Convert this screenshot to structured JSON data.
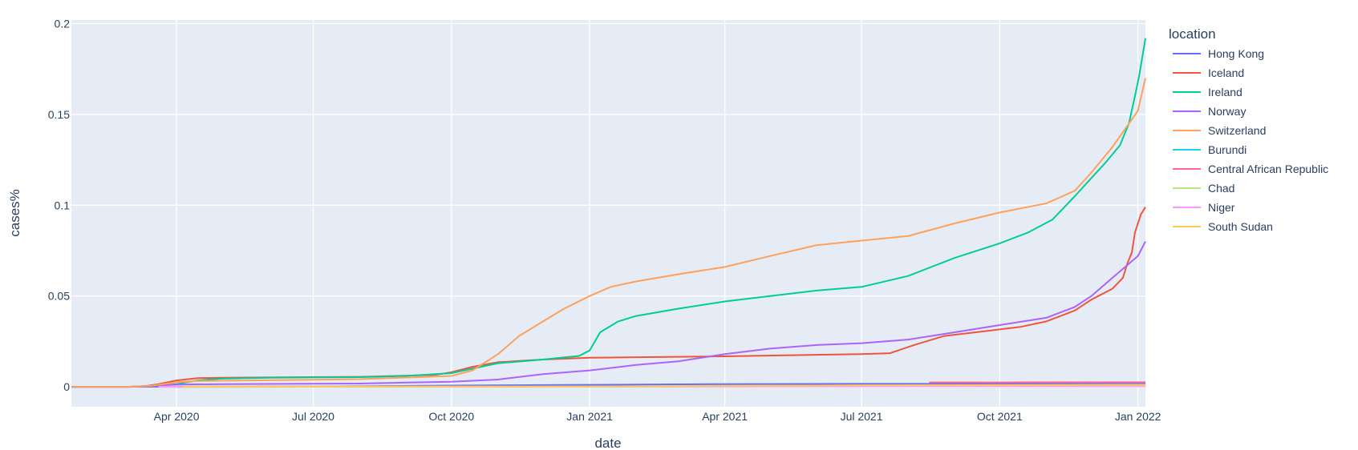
{
  "chart_data": {
    "type": "line",
    "xlabel": "date",
    "ylabel": "cases%",
    "legend_title": "location",
    "legend_position": "right",
    "grid": true,
    "x_range": [
      "2020-01-22",
      "2022-01-06"
    ],
    "y_range": [
      -0.011,
      0.202
    ],
    "x_ticks": [
      {
        "date": "2020-04-01",
        "label": "Apr 2020"
      },
      {
        "date": "2020-07-01",
        "label": "Jul 2020"
      },
      {
        "date": "2020-10-01",
        "label": "Oct 2020"
      },
      {
        "date": "2021-01-01",
        "label": "Jan 2021"
      },
      {
        "date": "2021-04-01",
        "label": "Apr 2021"
      },
      {
        "date": "2021-07-01",
        "label": "Jul 2021"
      },
      {
        "date": "2021-10-01",
        "label": "Oct 2021"
      },
      {
        "date": "2022-01-01",
        "label": "Jan 2022"
      }
    ],
    "y_ticks": [
      {
        "value": 0,
        "label": "0"
      },
      {
        "value": 0.05,
        "label": "0.05"
      },
      {
        "value": 0.1,
        "label": "0.1"
      },
      {
        "value": 0.15,
        "label": "0.15"
      },
      {
        "value": 0.2,
        "label": "0.2"
      }
    ],
    "series": [
      {
        "name": "Hong Kong",
        "color": "#636efa",
        "points": [
          [
            "2020-01-22",
            0
          ],
          [
            "2020-03-01",
            1e-05
          ],
          [
            "2020-04-01",
            9e-05
          ],
          [
            "2020-07-01",
            0.00017
          ],
          [
            "2020-10-01",
            0.0007
          ],
          [
            "2021-01-01",
            0.0011
          ],
          [
            "2021-04-01",
            0.0015
          ],
          [
            "2021-07-01",
            0.0016
          ],
          [
            "2021-10-01",
            0.0016
          ],
          [
            "2022-01-06",
            0.0017
          ]
        ]
      },
      {
        "name": "Iceland",
        "color": "#EF553B",
        "points": [
          [
            "2020-01-22",
            0
          ],
          [
            "2020-02-28",
            0
          ],
          [
            "2020-03-10",
            0.0002
          ],
          [
            "2020-03-20",
            0.0015
          ],
          [
            "2020-04-01",
            0.0035
          ],
          [
            "2020-04-15",
            0.0048
          ],
          [
            "2020-05-01",
            0.005
          ],
          [
            "2020-08-01",
            0.0055
          ],
          [
            "2020-09-20",
            0.0065
          ],
          [
            "2020-10-01",
            0.008
          ],
          [
            "2020-10-15",
            0.011
          ],
          [
            "2020-11-01",
            0.0135
          ],
          [
            "2020-12-01",
            0.015
          ],
          [
            "2021-01-01",
            0.016
          ],
          [
            "2021-04-01",
            0.0168
          ],
          [
            "2021-07-01",
            0.018
          ],
          [
            "2021-07-20",
            0.0185
          ],
          [
            "2021-08-05",
            0.023
          ],
          [
            "2021-08-25",
            0.028
          ],
          [
            "2021-09-15",
            0.03
          ],
          [
            "2021-10-15",
            0.033
          ],
          [
            "2021-11-01",
            0.036
          ],
          [
            "2021-11-20",
            0.042
          ],
          [
            "2021-12-01",
            0.048
          ],
          [
            "2021-12-15",
            0.054
          ],
          [
            "2021-12-22",
            0.06
          ],
          [
            "2021-12-25",
            0.068
          ],
          [
            "2021-12-28",
            0.074
          ],
          [
            "2021-12-30",
            0.085
          ],
          [
            "2022-01-03",
            0.095
          ],
          [
            "2022-01-06",
            0.099
          ]
        ]
      },
      {
        "name": "Ireland",
        "color": "#00cc96",
        "points": [
          [
            "2020-01-22",
            0
          ],
          [
            "2020-02-28",
            0
          ],
          [
            "2020-03-15",
            0.0005
          ],
          [
            "2020-04-01",
            0.0015
          ],
          [
            "2020-04-15",
            0.0035
          ],
          [
            "2020-05-01",
            0.0045
          ],
          [
            "2020-06-01",
            0.005
          ],
          [
            "2020-08-01",
            0.0053
          ],
          [
            "2020-09-01",
            0.006
          ],
          [
            "2020-10-01",
            0.0075
          ],
          [
            "2020-10-15",
            0.01
          ],
          [
            "2020-11-01",
            0.013
          ],
          [
            "2020-12-01",
            0.015
          ],
          [
            "2020-12-25",
            0.017
          ],
          [
            "2021-01-01",
            0.02
          ],
          [
            "2021-01-08",
            0.03
          ],
          [
            "2021-01-20",
            0.036
          ],
          [
            "2021-02-01",
            0.039
          ],
          [
            "2021-03-01",
            0.043
          ],
          [
            "2021-04-01",
            0.047
          ],
          [
            "2021-05-01",
            0.05
          ],
          [
            "2021-06-01",
            0.053
          ],
          [
            "2021-07-01",
            0.055
          ],
          [
            "2021-08-01",
            0.061
          ],
          [
            "2021-09-01",
            0.071
          ],
          [
            "2021-10-01",
            0.079
          ],
          [
            "2021-10-20",
            0.085
          ],
          [
            "2021-11-05",
            0.092
          ],
          [
            "2021-11-20",
            0.105
          ],
          [
            "2021-12-01",
            0.115
          ],
          [
            "2021-12-10",
            0.123
          ],
          [
            "2021-12-20",
            0.133
          ],
          [
            "2021-12-26",
            0.145
          ],
          [
            "2021-12-30",
            0.16
          ],
          [
            "2022-01-02",
            0.172
          ],
          [
            "2022-01-06",
            0.192
          ]
        ]
      },
      {
        "name": "Norway",
        "color": "#ab63fa",
        "points": [
          [
            "2020-01-22",
            0
          ],
          [
            "2020-03-01",
            0
          ],
          [
            "2020-03-15",
            0.0005
          ],
          [
            "2020-04-01",
            0.0012
          ],
          [
            "2020-05-01",
            0.0015
          ],
          [
            "2020-08-01",
            0.0018
          ],
          [
            "2020-10-01",
            0.0028
          ],
          [
            "2020-11-01",
            0.004
          ],
          [
            "2020-12-01",
            0.007
          ],
          [
            "2021-01-01",
            0.009
          ],
          [
            "2021-02-01",
            0.012
          ],
          [
            "2021-03-01",
            0.014
          ],
          [
            "2021-04-01",
            0.018
          ],
          [
            "2021-05-01",
            0.021
          ],
          [
            "2021-06-01",
            0.023
          ],
          [
            "2021-07-01",
            0.024
          ],
          [
            "2021-08-01",
            0.026
          ],
          [
            "2021-09-01",
            0.03
          ],
          [
            "2021-10-01",
            0.034
          ],
          [
            "2021-11-01",
            0.038
          ],
          [
            "2021-11-20",
            0.044
          ],
          [
            "2021-12-01",
            0.05
          ],
          [
            "2021-12-15",
            0.06
          ],
          [
            "2022-01-01",
            0.072
          ],
          [
            "2022-01-06",
            0.08
          ]
        ]
      },
      {
        "name": "Switzerland",
        "color": "#FFA15A",
        "points": [
          [
            "2020-01-22",
            0
          ],
          [
            "2020-02-28",
            0
          ],
          [
            "2020-03-15",
            0.0005
          ],
          [
            "2020-04-01",
            0.0025
          ],
          [
            "2020-04-15",
            0.0032
          ],
          [
            "2020-06-01",
            0.0036
          ],
          [
            "2020-08-01",
            0.0042
          ],
          [
            "2020-09-15",
            0.0055
          ],
          [
            "2020-10-01",
            0.006
          ],
          [
            "2020-10-15",
            0.009
          ],
          [
            "2020-11-01",
            0.018
          ],
          [
            "2020-11-15",
            0.028
          ],
          [
            "2020-12-01",
            0.036
          ],
          [
            "2020-12-15",
            0.043
          ],
          [
            "2021-01-01",
            0.05
          ],
          [
            "2021-01-15",
            0.055
          ],
          [
            "2021-02-01",
            0.058
          ],
          [
            "2021-03-01",
            0.062
          ],
          [
            "2021-04-01",
            0.066
          ],
          [
            "2021-05-01",
            0.072
          ],
          [
            "2021-06-01",
            0.078
          ],
          [
            "2021-07-01",
            0.0805
          ],
          [
            "2021-08-01",
            0.083
          ],
          [
            "2021-09-01",
            0.09
          ],
          [
            "2021-10-01",
            0.096
          ],
          [
            "2021-11-01",
            0.101
          ],
          [
            "2021-11-20",
            0.108
          ],
          [
            "2021-12-01",
            0.118
          ],
          [
            "2021-12-15",
            0.132
          ],
          [
            "2022-01-01",
            0.152
          ],
          [
            "2022-01-06",
            0.17
          ]
        ]
      },
      {
        "name": "Burundi",
        "color": "#19d3f3",
        "points": [
          [
            "2020-04-01",
            0
          ],
          [
            "2020-10-01",
            5e-05
          ],
          [
            "2021-01-01",
            0.0001
          ],
          [
            "2021-07-01",
            0.0004
          ],
          [
            "2022-01-06",
            0.0003
          ]
        ]
      },
      {
        "name": "Central African Republic",
        "color": "#FF6692",
        "points": [
          [
            "2021-08-15",
            0.0024
          ],
          [
            "2021-10-01",
            0.0024
          ],
          [
            "2021-12-01",
            0.0025
          ],
          [
            "2022-01-06",
            0.0025
          ]
        ]
      },
      {
        "name": "Chad",
        "color": "#B6E880",
        "points": [
          [
            "2020-03-20",
            0
          ],
          [
            "2020-10-01",
            5e-05
          ],
          [
            "2021-01-01",
            0.0001
          ],
          [
            "2021-07-01",
            0.0003
          ],
          [
            "2022-01-06",
            0.0004
          ]
        ]
      },
      {
        "name": "Niger",
        "color": "#FF97FF",
        "points": [
          [
            "2020-03-20",
            0
          ],
          [
            "2020-10-01",
            5e-05
          ],
          [
            "2021-01-01",
            0.0001
          ],
          [
            "2021-07-01",
            0.0002
          ],
          [
            "2022-01-06",
            0.0003
          ]
        ]
      },
      {
        "name": "South Sudan",
        "color": "#FECB52",
        "points": [
          [
            "2020-04-05",
            0
          ],
          [
            "2020-07-01",
            0.0001
          ],
          [
            "2021-01-01",
            0.00015
          ],
          [
            "2021-07-01",
            0.0008
          ],
          [
            "2022-01-06",
            0.0011
          ]
        ]
      }
    ]
  }
}
